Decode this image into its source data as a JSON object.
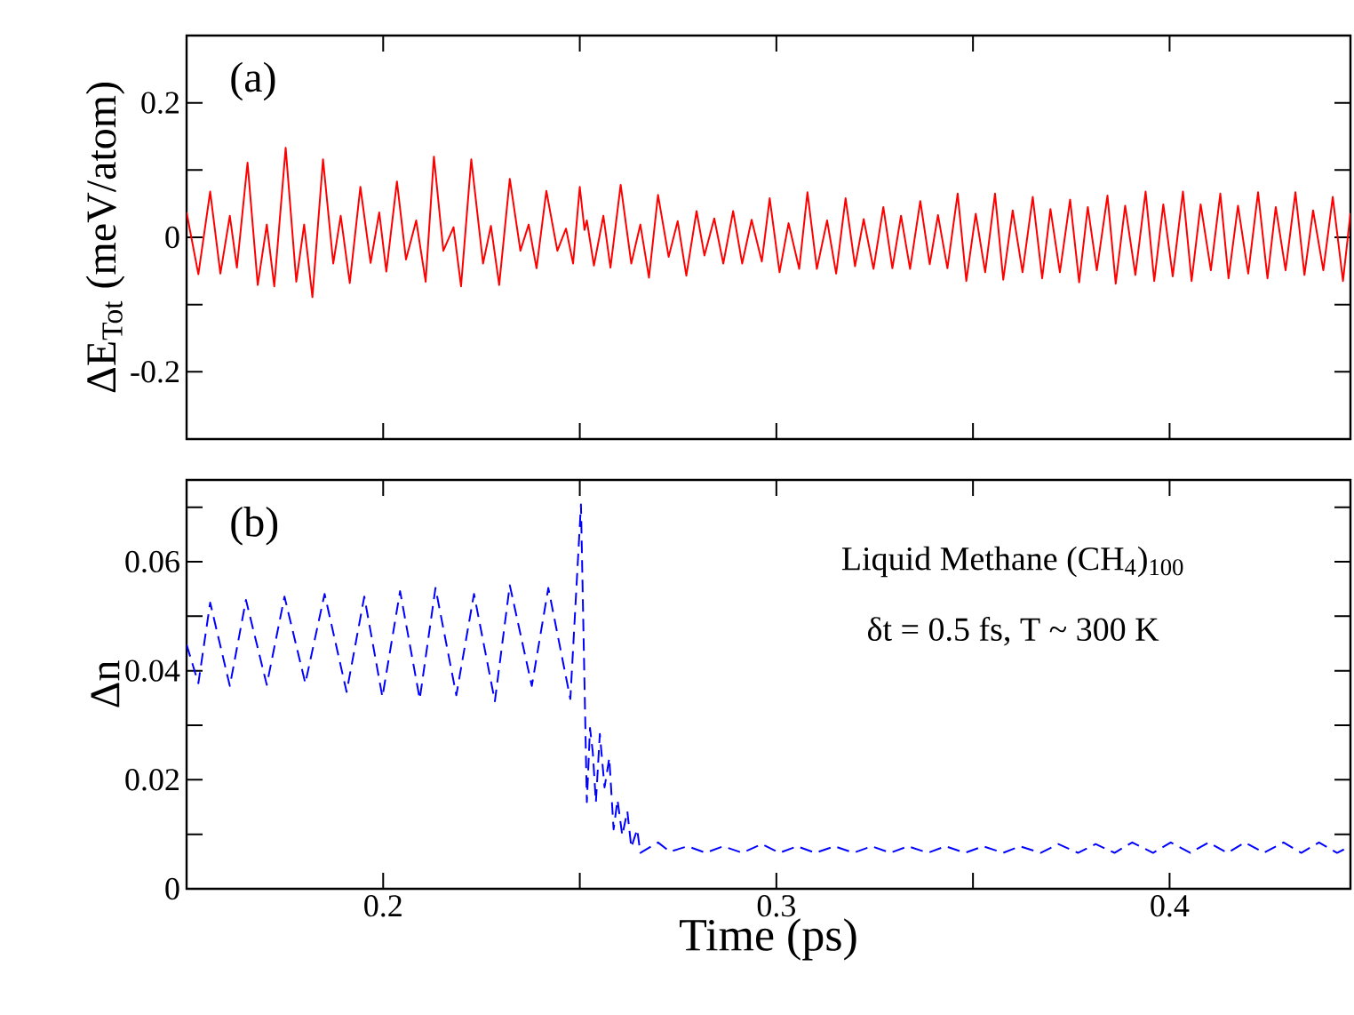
{
  "chart_data": [
    {
      "type": "line",
      "ylabel": "ΔE$_{Tot}$ (meV/atom)",
      "annotations": [
        "(a)"
      ],
      "xlim": [
        0.15,
        0.446
      ],
      "ylim": [
        -0.3,
        0.3
      ],
      "xticks": [
        {
          "value": 0.2,
          "label": null
        },
        {
          "value": 0.25,
          "label": null
        },
        {
          "value": 0.3,
          "label": null
        },
        {
          "value": 0.35,
          "label": null
        },
        {
          "value": 0.4,
          "label": null
        }
      ],
      "yticks": [
        -0.2,
        {
          "value": -0.1,
          "label": null
        },
        0,
        {
          "value": 0.1,
          "label": null
        },
        0.2
      ],
      "tick_labels": "y",
      "line_style": "solid",
      "series": [
        {
          "color": "#ff0000",
          "x": [
            0.15,
            0.153,
            0.156,
            0.1586,
            0.161,
            0.1628,
            0.1655,
            0.1681,
            0.1704,
            0.1723,
            0.1752,
            0.1779,
            0.1799,
            0.182,
            0.1847,
            0.1873,
            0.1892,
            0.1915,
            0.1942,
            0.1968,
            0.199,
            0.2008,
            0.2035,
            0.2058,
            0.2084,
            0.2108,
            0.2129,
            0.2153,
            0.2179,
            0.2198,
            0.2224,
            0.2254,
            0.2274,
            0.2295,
            0.2322,
            0.2349,
            0.237,
            0.239,
            0.2415,
            0.2443,
            0.2465,
            0.2483,
            0.25,
            0.2512,
            0.2518,
            0.2536,
            0.256,
            0.2578,
            0.2604,
            0.2631,
            0.2654,
            0.2676,
            0.2699,
            0.2726,
            0.2749,
            0.2771,
            0.2797,
            0.2817,
            0.2842,
            0.2865,
            0.289,
            0.2913,
            0.2937,
            0.2963,
            0.2983,
            0.3008,
            0.3031,
            0.3058,
            0.3079,
            0.3103,
            0.3129,
            0.3152,
            0.3176,
            0.32,
            0.3222,
            0.3247,
            0.3272,
            0.3295,
            0.3317,
            0.334,
            0.3366,
            0.339,
            0.3411,
            0.3435,
            0.3461,
            0.3483,
            0.3507,
            0.3531,
            0.3556,
            0.3577,
            0.3601,
            0.3626,
            0.3652,
            0.3676,
            0.3697,
            0.3721,
            0.3747,
            0.377,
            0.3792,
            0.3815,
            0.3842,
            0.3863,
            0.3887,
            0.3913,
            0.3939,
            0.3961,
            0.3984,
            0.4008,
            0.4034,
            0.4056,
            0.4079,
            0.4105,
            0.4129,
            0.415,
            0.4174,
            0.42,
            0.4225,
            0.4249,
            0.427,
            0.4295,
            0.432,
            0.4343,
            0.4365,
            0.4391,
            0.4415,
            0.4441,
            0.446
          ],
          "values": [
            0.037,
            -0.055,
            0.068,
            -0.054,
            0.032,
            -0.045,
            0.111,
            -0.071,
            0.019,
            -0.073,
            0.133,
            -0.066,
            0.019,
            -0.089,
            0.116,
            -0.039,
            0.032,
            -0.068,
            0.075,
            -0.038,
            0.037,
            -0.051,
            0.083,
            -0.033,
            0.025,
            -0.066,
            0.12,
            -0.02,
            0.015,
            -0.073,
            0.116,
            -0.039,
            0.017,
            -0.071,
            0.087,
            -0.02,
            0.019,
            -0.046,
            0.069,
            -0.02,
            0.013,
            -0.039,
            0.075,
            0.011,
            0.025,
            -0.042,
            0.032,
            -0.045,
            0.078,
            -0.039,
            0.019,
            -0.06,
            0.063,
            -0.029,
            0.024,
            -0.057,
            0.039,
            -0.027,
            0.028,
            -0.039,
            0.039,
            -0.039,
            0.026,
            -0.036,
            0.058,
            -0.052,
            0.021,
            -0.047,
            0.067,
            -0.047,
            0.025,
            -0.054,
            0.058,
            -0.043,
            0.027,
            -0.047,
            0.045,
            -0.046,
            0.032,
            -0.047,
            0.054,
            -0.04,
            0.033,
            -0.046,
            0.065,
            -0.065,
            0.035,
            -0.052,
            0.065,
            -0.063,
            0.04,
            -0.052,
            0.06,
            -0.061,
            0.042,
            -0.052,
            0.056,
            -0.067,
            0.045,
            -0.049,
            0.062,
            -0.069,
            0.047,
            -0.056,
            0.068,
            -0.065,
            0.049,
            -0.058,
            0.068,
            -0.065,
            0.049,
            -0.049,
            0.065,
            -0.061,
            0.047,
            -0.054,
            0.067,
            -0.061,
            0.045,
            -0.049,
            0.067,
            -0.056,
            0.04,
            -0.049,
            0.06,
            -0.065,
            0.036
          ]
        }
      ]
    },
    {
      "type": "line",
      "xlabel": "Time (ps)",
      "ylabel": "Δn",
      "annotations": [
        "(b)",
        "Liquid Methane (CH$_{4}$)$_{100}$",
        "δt = 0.5 fs, T ~ 300 K"
      ],
      "xlim": [
        0.15,
        0.446
      ],
      "ylim": [
        0,
        0.075
      ],
      "xticks": [
        0.2,
        {
          "value": 0.25,
          "label": null
        },
        0.3,
        {
          "value": 0.35,
          "label": null
        },
        0.4
      ],
      "yticks": [
        0,
        {
          "value": 0.01,
          "label": null
        },
        0.02,
        {
          "value": 0.03,
          "label": null
        },
        0.04,
        {
          "value": 0.05,
          "label": null
        },
        0.06,
        {
          "value": 0.07,
          "label": null
        }
      ],
      "line_style": "dashed",
      "series": [
        {
          "color": "#0000ff",
          "x": [
            0.15,
            0.153,
            0.156,
            0.161,
            0.1651,
            0.1704,
            0.1749,
            0.1802,
            0.1851,
            0.1907,
            0.1952,
            0.1998,
            0.2043,
            0.2093,
            0.2133,
            0.2186,
            0.2231,
            0.2284,
            0.2322,
            0.2378,
            0.242,
            0.2476,
            0.2503,
            0.2518,
            0.2526,
            0.2533,
            0.2541,
            0.2551,
            0.2563,
            0.2575,
            0.2586,
            0.2596,
            0.2608,
            0.2621,
            0.2631,
            0.2646,
            0.2654,
            0.2699,
            0.2729,
            0.2774,
            0.282,
            0.2865,
            0.2913,
            0.2963,
            0.3008,
            0.3053,
            0.3099,
            0.3148,
            0.3196,
            0.3242,
            0.329,
            0.3335,
            0.3385,
            0.343,
            0.348,
            0.3526,
            0.3577,
            0.3619,
            0.3672,
            0.3717,
            0.3767,
            0.3812,
            0.386,
            0.3905,
            0.3958,
            0.4003,
            0.4053,
            0.4099,
            0.4147,
            0.4192,
            0.424,
            0.429,
            0.4335,
            0.438,
            0.4426,
            0.446
          ],
          "values": [
            0.0448,
            0.0377,
            0.0525,
            0.0372,
            0.053,
            0.0374,
            0.0536,
            0.0377,
            0.0541,
            0.0361,
            0.0536,
            0.0352,
            0.0546,
            0.0348,
            0.0552,
            0.0355,
            0.0541,
            0.0344,
            0.0557,
            0.0372,
            0.0552,
            0.0348,
            0.0705,
            0.0159,
            0.0295,
            0.0251,
            0.0159,
            0.0284,
            0.0186,
            0.024,
            0.0109,
            0.0163,
            0.0098,
            0.0142,
            0.0076,
            0.0109,
            0.0066,
            0.0085,
            0.0068,
            0.0078,
            0.0066,
            0.0078,
            0.0066,
            0.0082,
            0.0066,
            0.0078,
            0.0066,
            0.0078,
            0.0066,
            0.0078,
            0.0066,
            0.0078,
            0.0066,
            0.0078,
            0.0066,
            0.0078,
            0.0066,
            0.0078,
            0.0066,
            0.0082,
            0.0066,
            0.0082,
            0.0066,
            0.0085,
            0.0066,
            0.0085,
            0.0066,
            0.0085,
            0.0066,
            0.0085,
            0.0066,
            0.0085,
            0.0066,
            0.0085,
            0.0066,
            0.0078
          ]
        }
      ]
    }
  ]
}
